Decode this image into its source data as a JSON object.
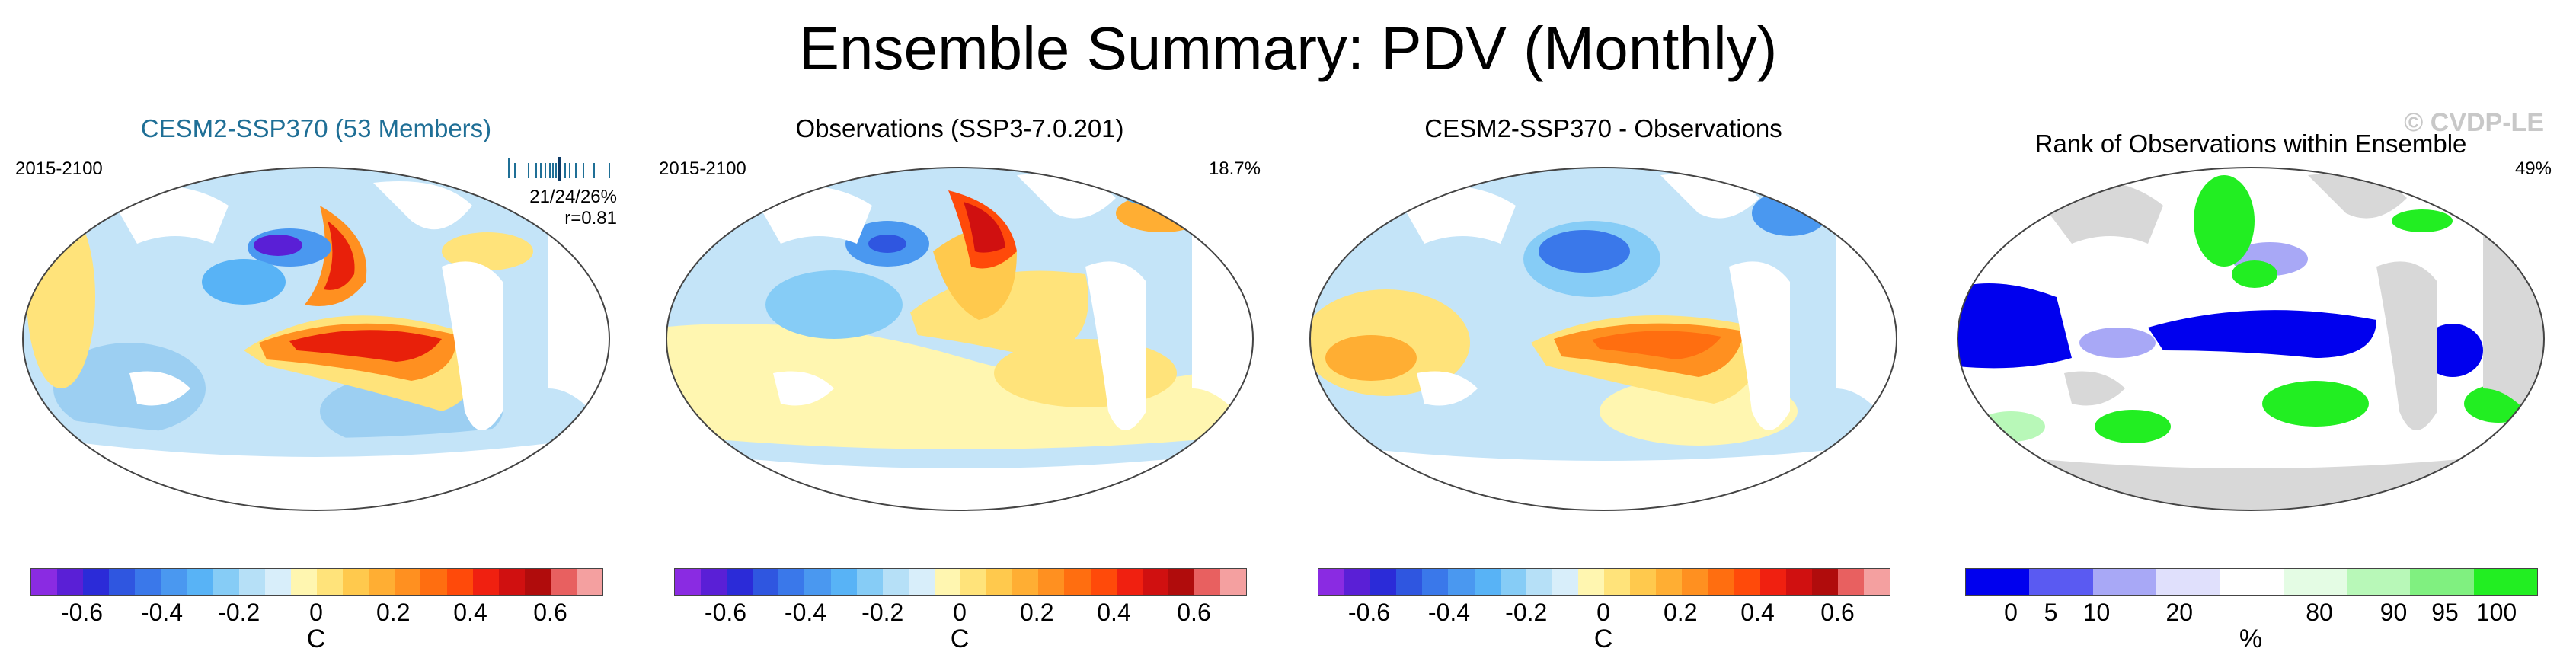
{
  "title": "Ensemble Summary: PDV (Monthly)",
  "watermark": "© CVDP-LE",
  "colors": {
    "anomaly_scale": [
      "#8a2be2",
      "#5a1fd6",
      "#2b2bd8",
      "#2f56e0",
      "#3a78ea",
      "#4a98f0",
      "#58b3f6",
      "#86ccf6",
      "#b6e0f7",
      "#d8eefa",
      "#fff6b0",
      "#ffe37a",
      "#ffc94d",
      "#ffae33",
      "#ff9020",
      "#ff6e10",
      "#ff4a0a",
      "#f02010",
      "#d01010",
      "#b00c0c",
      "#e86060",
      "#f4a0a0"
    ],
    "rank_scale": [
      "#0000ee",
      "#5a5af2",
      "#a8a8f6",
      "#e0e0fc",
      "#ffffff",
      "#e4fce4",
      "#b8f8b8",
      "#80f080",
      "#22ee22"
    ]
  },
  "panels": [
    {
      "title": "CESM2-SSP370 (53 Members)",
      "period": "2015-2100",
      "stat_ratio": "21/24/26%",
      "stat_r": "r=0.81",
      "colorbar_ticks": [
        "-0.6",
        "-0.4",
        "-0.2",
        "0",
        "0.2",
        "0.4",
        "0.6"
      ],
      "unit": "C"
    },
    {
      "title": "Observations (SSP3-7.0.201)",
      "period": "2015-2100",
      "pct": "18.7%",
      "colorbar_ticks": [
        "-0.6",
        "-0.4",
        "-0.2",
        "0",
        "0.2",
        "0.4",
        "0.6"
      ],
      "unit": "C"
    },
    {
      "title": "CESM2-SSP370 - Observations",
      "colorbar_ticks": [
        "-0.6",
        "-0.4",
        "-0.2",
        "0",
        "0.2",
        "0.4",
        "0.6"
      ],
      "unit": "C"
    },
    {
      "title": "Rank of Observations within Ensemble",
      "pct": "49%",
      "colorbar_ticks": [
        "0",
        "5",
        "10",
        "20",
        "80",
        "90",
        "95",
        "100"
      ],
      "unit": "%"
    }
  ]
}
